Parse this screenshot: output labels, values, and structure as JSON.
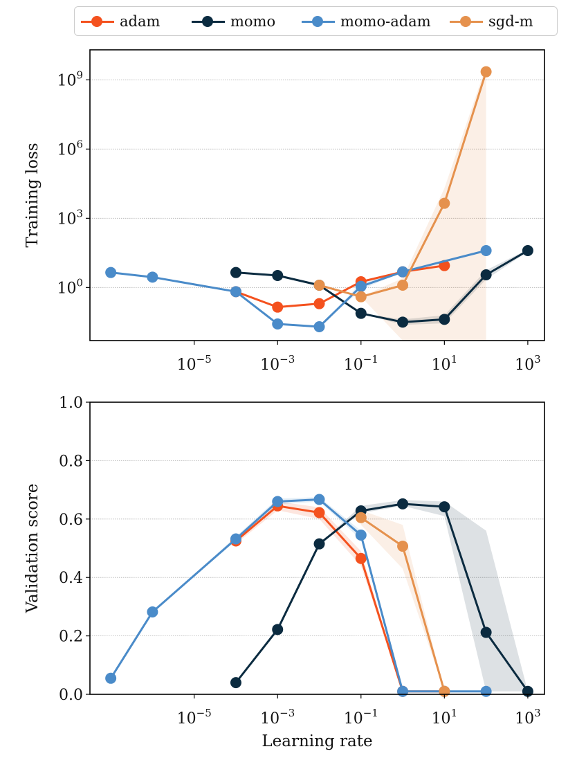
{
  "legend": {
    "items": [
      {
        "name": "adam",
        "color": "#f4511e"
      },
      {
        "name": "momo",
        "color": "#0b2b40"
      },
      {
        "name": "momo-adam",
        "color": "#4a8bc9"
      },
      {
        "name": "sgd-m",
        "color": "#e5914d"
      }
    ]
  },
  "chart_data": [
    {
      "type": "line",
      "ylabel": "Training loss",
      "xlabel": "",
      "xscale": "log",
      "yscale": "log",
      "xlim_log10": [
        -7.5,
        3.4
      ],
      "ylim_log10": [
        -2.3,
        10.3
      ],
      "x_ticks": [
        {
          "exp": -5,
          "label": "10",
          "sup": "−5"
        },
        {
          "exp": -3,
          "label": "10",
          "sup": "−3"
        },
        {
          "exp": -1,
          "label": "10",
          "sup": "−1"
        },
        {
          "exp": 1,
          "label": "10",
          "sup": "1"
        },
        {
          "exp": 3,
          "label": "10",
          "sup": "3"
        }
      ],
      "y_ticks": [
        {
          "exp": 0,
          "label": "10",
          "sup": "0"
        },
        {
          "exp": 3,
          "label": "10",
          "sup": "3"
        },
        {
          "exp": 6,
          "label": "10",
          "sup": "6"
        },
        {
          "exp": 9,
          "label": "10",
          "sup": "9"
        }
      ],
      "series": [
        {
          "name": "adam",
          "color": "#f4511e",
          "x_log10": [
            -4,
            -3,
            -2,
            -1,
            0,
            1
          ],
          "y_log10": [
            -0.18,
            -0.85,
            -0.7,
            0.25,
            0.68,
            0.95
          ],
          "band_lo": [
            -0.18,
            -0.85,
            -0.7,
            0.25,
            0.68,
            0.95
          ],
          "band_hi": [
            -0.18,
            -0.85,
            -0.7,
            0.25,
            0.68,
            0.95
          ]
        },
        {
          "name": "momo",
          "color": "#0b2b40",
          "x_log10": [
            -4,
            -3,
            -2,
            -1,
            0,
            1,
            2,
            3
          ],
          "y_log10": [
            0.65,
            0.52,
            0.1,
            -1.12,
            -1.5,
            -1.38,
            0.55,
            1.6
          ],
          "band_lo": [
            0.65,
            0.52,
            0.1,
            -1.12,
            -1.62,
            -1.55,
            0.35,
            1.55
          ],
          "band_hi": [
            0.65,
            0.52,
            0.1,
            -1.12,
            -1.38,
            -1.2,
            0.75,
            1.65
          ]
        },
        {
          "name": "momo-adam",
          "color": "#4a8bc9",
          "x_log10": [
            -7,
            -6,
            -4,
            -3,
            -2,
            -1,
            0,
            2
          ],
          "y_log10": [
            0.65,
            0.45,
            -0.18,
            -1.58,
            -1.7,
            0.05,
            0.68,
            1.6
          ],
          "band_lo": [
            0.65,
            0.45,
            -0.18,
            -1.58,
            -1.7,
            -0.1,
            0.68,
            1.6
          ],
          "band_hi": [
            0.65,
            0.45,
            -0.18,
            -1.58,
            -1.7,
            0.2,
            0.68,
            1.6
          ]
        },
        {
          "name": "sgd-m",
          "color": "#e5914d",
          "x_log10": [
            -2,
            -1,
            0,
            1,
            2
          ],
          "y_log10": [
            0.1,
            -0.4,
            0.1,
            3.65,
            9.35
          ],
          "band_lo": [
            0.1,
            -0.4,
            -2.3,
            -2.3,
            -2.3
          ],
          "band_hi": [
            0.1,
            -0.4,
            0.4,
            4.3,
            9.6
          ]
        }
      ]
    },
    {
      "type": "line",
      "ylabel": "Validation score",
      "xlabel": "Learning rate",
      "xscale": "log",
      "xlim_log10": [
        -7.5,
        3.4
      ],
      "ylim": [
        0.0,
        1.0
      ],
      "x_ticks": [
        {
          "exp": -5,
          "label": "10",
          "sup": "−5"
        },
        {
          "exp": -3,
          "label": "10",
          "sup": "−3"
        },
        {
          "exp": -1,
          "label": "10",
          "sup": "−1"
        },
        {
          "exp": 1,
          "label": "10",
          "sup": "1"
        },
        {
          "exp": 3,
          "label": "10",
          "sup": "3"
        }
      ],
      "y_ticks": [
        {
          "value": 0.0,
          "label": "0.0"
        },
        {
          "value": 0.2,
          "label": "0.2"
        },
        {
          "value": 0.4,
          "label": "0.4"
        },
        {
          "value": 0.6,
          "label": "0.6"
        },
        {
          "value": 0.8,
          "label": "0.8"
        },
        {
          "value": 1.0,
          "label": "1.0"
        }
      ],
      "series": [
        {
          "name": "adam",
          "color": "#f4511e",
          "x_log10": [
            -4,
            -3,
            -2,
            -1,
            0,
            1
          ],
          "y": [
            0.525,
            0.645,
            0.622,
            0.465,
            0.01,
            0.01
          ],
          "band_lo": [
            0.515,
            0.63,
            0.6,
            0.44,
            0.01,
            0.01
          ],
          "band_hi": [
            0.535,
            0.66,
            0.64,
            0.49,
            0.01,
            0.01
          ]
        },
        {
          "name": "momo",
          "color": "#0b2b40",
          "x_log10": [
            -4,
            -3,
            -2,
            -1,
            0,
            1,
            2,
            3
          ],
          "y": [
            0.04,
            0.222,
            0.515,
            0.628,
            0.652,
            0.642,
            0.212,
            0.01
          ],
          "band_lo": [
            0.04,
            0.222,
            0.515,
            0.62,
            0.645,
            0.61,
            0.01,
            0.01
          ],
          "band_hi": [
            0.04,
            0.222,
            0.515,
            0.645,
            0.665,
            0.66,
            0.56,
            0.01
          ]
        },
        {
          "name": "momo-adam",
          "color": "#4a8bc9",
          "x_log10": [
            -7,
            -6,
            -4,
            -3,
            -2,
            -1,
            0,
            1,
            2
          ],
          "y": [
            0.055,
            0.282,
            0.532,
            0.66,
            0.667,
            0.545,
            0.01,
            0.01,
            0.01
          ],
          "band_lo": [
            0.055,
            0.282,
            0.525,
            0.65,
            0.66,
            0.53,
            0.01,
            0.01,
            0.01
          ],
          "band_hi": [
            0.055,
            0.282,
            0.54,
            0.67,
            0.675,
            0.56,
            0.01,
            0.01,
            0.01
          ]
        },
        {
          "name": "sgd-m",
          "color": "#e5914d",
          "x_log10": [
            -1,
            0,
            1
          ],
          "y": [
            0.605,
            0.507,
            0.01
          ],
          "band_lo": [
            0.58,
            0.43,
            0.01
          ],
          "band_hi": [
            0.63,
            0.58,
            0.01
          ]
        }
      ]
    }
  ]
}
